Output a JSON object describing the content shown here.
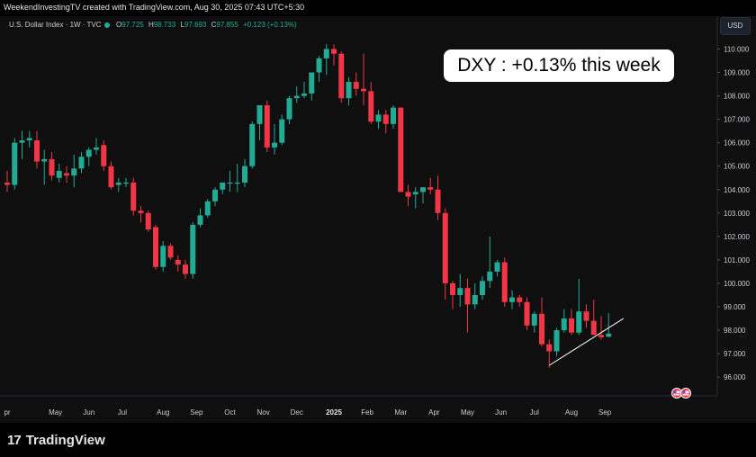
{
  "header": {
    "credit": "WeekendInvestingTV created with TradingView.com, Aug 30, 2025 07:43 UTC+5:30",
    "symbol": "U.S. Dollar Index · 1W · TVC",
    "open_label": "O",
    "open": "97.725",
    "high_label": "H",
    "high": "98.733",
    "low_label": "L",
    "low": "97.693",
    "close_label": "C",
    "close": "97.855",
    "change": "+0.123 (+0.13%)"
  },
  "currency_badge": "USD",
  "annotation": "DXY : +0.13% this week",
  "brand": {
    "mark": "17",
    "name": "TradingView"
  },
  "colors": {
    "up": "#22ab94",
    "down": "#f23645",
    "background": "#0f0f0f",
    "trendline": "#ffffff"
  },
  "chart_data": {
    "type": "candlestick",
    "interval": "1W",
    "y_range": [
      95.2,
      111.4
    ],
    "y_ticks": [
      "110.000",
      "109.000",
      "108.000",
      "107.000",
      "106.000",
      "105.000",
      "104.000",
      "103.000",
      "102.000",
      "101.000",
      "100.000",
      "99.000",
      "98.000",
      "97.000",
      "96.000"
    ],
    "x_ticks": [
      {
        "label": "pr",
        "bar": 0
      },
      {
        "label": "May",
        "bar": 6.5
      },
      {
        "label": "Jun",
        "bar": 11
      },
      {
        "label": "Jul",
        "bar": 15.5
      },
      {
        "label": "Aug",
        "bar": 21
      },
      {
        "label": "Sep",
        "bar": 25.5
      },
      {
        "label": "Oct",
        "bar": 30
      },
      {
        "label": "Nov",
        "bar": 34.5
      },
      {
        "label": "Dec",
        "bar": 39
      },
      {
        "label": "2025",
        "bar": 44,
        "bold": true
      },
      {
        "label": "Feb",
        "bar": 48.5
      },
      {
        "label": "Mar",
        "bar": 53
      },
      {
        "label": "Apr",
        "bar": 57.5
      },
      {
        "label": "May",
        "bar": 62
      },
      {
        "label": "Jun",
        "bar": 66.5
      },
      {
        "label": "Jul",
        "bar": 71
      },
      {
        "label": "Aug",
        "bar": 76
      },
      {
        "label": "Sep",
        "bar": 80.5
      }
    ],
    "candles": [
      {
        "o": 104.3,
        "h": 104.8,
        "l": 103.9,
        "c": 104.2
      },
      {
        "o": 104.2,
        "h": 106.2,
        "l": 104.0,
        "c": 106.0
      },
      {
        "o": 106.0,
        "h": 106.5,
        "l": 105.3,
        "c": 106.1
      },
      {
        "o": 106.1,
        "h": 106.5,
        "l": 105.8,
        "c": 106.2
      },
      {
        "o": 106.1,
        "h": 106.5,
        "l": 104.9,
        "c": 105.2
      },
      {
        "o": 105.2,
        "h": 105.7,
        "l": 104.2,
        "c": 105.3
      },
      {
        "o": 105.3,
        "h": 105.6,
        "l": 104.4,
        "c": 104.6
      },
      {
        "o": 104.5,
        "h": 105.1,
        "l": 104.3,
        "c": 104.8
      },
      {
        "o": 104.7,
        "h": 105.0,
        "l": 104.3,
        "c": 104.6
      },
      {
        "o": 104.6,
        "h": 105.5,
        "l": 104.1,
        "c": 104.9
      },
      {
        "o": 104.9,
        "h": 105.6,
        "l": 104.7,
        "c": 105.4
      },
      {
        "o": 105.4,
        "h": 105.8,
        "l": 105.0,
        "c": 105.7
      },
      {
        "o": 105.7,
        "h": 106.2,
        "l": 105.5,
        "c": 105.8
      },
      {
        "o": 105.9,
        "h": 106.1,
        "l": 104.8,
        "c": 105.0
      },
      {
        "o": 105.0,
        "h": 105.2,
        "l": 104.0,
        "c": 104.1
      },
      {
        "o": 104.2,
        "h": 104.5,
        "l": 103.9,
        "c": 104.3
      },
      {
        "o": 104.3,
        "h": 104.5,
        "l": 104.1,
        "c": 104.3
      },
      {
        "o": 104.3,
        "h": 104.5,
        "l": 102.9,
        "c": 103.1
      },
      {
        "o": 103.1,
        "h": 103.3,
        "l": 102.6,
        "c": 103.0
      },
      {
        "o": 103.0,
        "h": 103.1,
        "l": 102.2,
        "c": 102.3
      },
      {
        "o": 102.4,
        "h": 102.5,
        "l": 100.6,
        "c": 100.7
      },
      {
        "o": 100.7,
        "h": 101.8,
        "l": 100.5,
        "c": 101.6
      },
      {
        "o": 101.6,
        "h": 101.7,
        "l": 101.0,
        "c": 101.1
      },
      {
        "o": 101.0,
        "h": 101.2,
        "l": 100.5,
        "c": 100.8
      },
      {
        "o": 100.8,
        "h": 101.0,
        "l": 100.2,
        "c": 100.4
      },
      {
        "o": 100.4,
        "h": 102.6,
        "l": 100.2,
        "c": 102.5
      },
      {
        "o": 102.5,
        "h": 103.2,
        "l": 102.4,
        "c": 102.9
      },
      {
        "o": 102.9,
        "h": 103.6,
        "l": 102.8,
        "c": 103.5
      },
      {
        "o": 103.5,
        "h": 104.1,
        "l": 103.3,
        "c": 104.0
      },
      {
        "o": 104.0,
        "h": 104.3,
        "l": 103.8,
        "c": 104.3
      },
      {
        "o": 104.3,
        "h": 104.8,
        "l": 103.9,
        "c": 104.3
      },
      {
        "o": 104.3,
        "h": 105.1,
        "l": 103.9,
        "c": 104.3
      },
      {
        "o": 104.3,
        "h": 105.3,
        "l": 104.1,
        "c": 105.0
      },
      {
        "o": 105.0,
        "h": 106.9,
        "l": 104.9,
        "c": 106.8
      },
      {
        "o": 106.8,
        "h": 107.6,
        "l": 106.1,
        "c": 107.6
      },
      {
        "o": 107.6,
        "h": 107.8,
        "l": 105.6,
        "c": 105.8
      },
      {
        "o": 105.8,
        "h": 106.8,
        "l": 105.5,
        "c": 106.0
      },
      {
        "o": 106.0,
        "h": 107.2,
        "l": 105.9,
        "c": 107.0
      },
      {
        "o": 107.0,
        "h": 108.0,
        "l": 106.8,
        "c": 107.9
      },
      {
        "o": 107.9,
        "h": 108.4,
        "l": 107.7,
        "c": 108.0
      },
      {
        "o": 108.0,
        "h": 108.6,
        "l": 107.9,
        "c": 108.1
      },
      {
        "o": 108.1,
        "h": 109.0,
        "l": 107.8,
        "c": 109.0
      },
      {
        "o": 109.0,
        "h": 109.7,
        "l": 108.6,
        "c": 109.6
      },
      {
        "o": 109.6,
        "h": 110.2,
        "l": 108.9,
        "c": 110.0
      },
      {
        "o": 110.0,
        "h": 110.2,
        "l": 109.3,
        "c": 109.8
      },
      {
        "o": 109.8,
        "h": 109.9,
        "l": 107.7,
        "c": 107.9
      },
      {
        "o": 107.9,
        "h": 108.8,
        "l": 107.6,
        "c": 108.6
      },
      {
        "o": 108.6,
        "h": 109.0,
        "l": 108.0,
        "c": 108.3
      },
      {
        "o": 108.3,
        "h": 109.8,
        "l": 107.6,
        "c": 108.2
      },
      {
        "o": 108.2,
        "h": 108.6,
        "l": 106.8,
        "c": 106.9
      },
      {
        "o": 106.9,
        "h": 107.4,
        "l": 106.6,
        "c": 107.2
      },
      {
        "o": 107.2,
        "h": 107.4,
        "l": 106.4,
        "c": 106.8
      },
      {
        "o": 106.8,
        "h": 107.6,
        "l": 106.6,
        "c": 107.5
      },
      {
        "o": 107.5,
        "h": 107.5,
        "l": 103.9,
        "c": 103.9
      },
      {
        "o": 103.9,
        "h": 104.2,
        "l": 103.3,
        "c": 103.7
      },
      {
        "o": 103.8,
        "h": 104.1,
        "l": 103.2,
        "c": 103.9
      },
      {
        "o": 103.9,
        "h": 104.1,
        "l": 103.4,
        "c": 104.1
      },
      {
        "o": 104.1,
        "h": 104.5,
        "l": 103.8,
        "c": 104.0
      },
      {
        "o": 104.0,
        "h": 104.6,
        "l": 102.7,
        "c": 103.0
      },
      {
        "o": 103.0,
        "h": 103.2,
        "l": 99.3,
        "c": 100.0
      },
      {
        "o": 100.0,
        "h": 100.1,
        "l": 98.9,
        "c": 99.5
      },
      {
        "o": 99.5,
        "h": 100.4,
        "l": 99.0,
        "c": 99.8
      },
      {
        "o": 99.8,
        "h": 100.2,
        "l": 97.9,
        "c": 99.1
      },
      {
        "o": 99.1,
        "h": 100.0,
        "l": 98.9,
        "c": 99.5
      },
      {
        "o": 99.5,
        "h": 100.3,
        "l": 99.3,
        "c": 100.1
      },
      {
        "o": 100.1,
        "h": 102.0,
        "l": 99.8,
        "c": 100.5
      },
      {
        "o": 100.5,
        "h": 101.0,
        "l": 100.3,
        "c": 100.9
      },
      {
        "o": 100.9,
        "h": 101.1,
        "l": 99.0,
        "c": 99.2
      },
      {
        "o": 99.2,
        "h": 99.7,
        "l": 98.9,
        "c": 99.4
      },
      {
        "o": 99.4,
        "h": 99.5,
        "l": 99.0,
        "c": 99.2
      },
      {
        "o": 99.2,
        "h": 99.4,
        "l": 98.0,
        "c": 98.2
      },
      {
        "o": 98.2,
        "h": 98.8,
        "l": 97.9,
        "c": 98.7
      },
      {
        "o": 98.7,
        "h": 99.4,
        "l": 97.3,
        "c": 97.4
      },
      {
        "o": 97.4,
        "h": 97.6,
        "l": 96.4,
        "c": 97.1
      },
      {
        "o": 97.1,
        "h": 98.1,
        "l": 96.9,
        "c": 98.0
      },
      {
        "o": 98.0,
        "h": 98.9,
        "l": 97.9,
        "c": 98.5
      },
      {
        "o": 98.5,
        "h": 98.9,
        "l": 97.8,
        "c": 97.9
      },
      {
        "o": 97.9,
        "h": 100.2,
        "l": 97.8,
        "c": 98.8
      },
      {
        "o": 98.8,
        "h": 99.1,
        "l": 98.1,
        "c": 98.4
      },
      {
        "o": 98.4,
        "h": 99.3,
        "l": 97.8,
        "c": 97.8
      },
      {
        "o": 97.8,
        "h": 98.6,
        "l": 97.6,
        "c": 97.7
      },
      {
        "o": 97.725,
        "h": 98.733,
        "l": 97.693,
        "c": 97.855
      }
    ],
    "trendline": {
      "from": {
        "bar": 73,
        "value": 96.5
      },
      "to": {
        "bar": 83,
        "value": 98.5
      }
    }
  }
}
